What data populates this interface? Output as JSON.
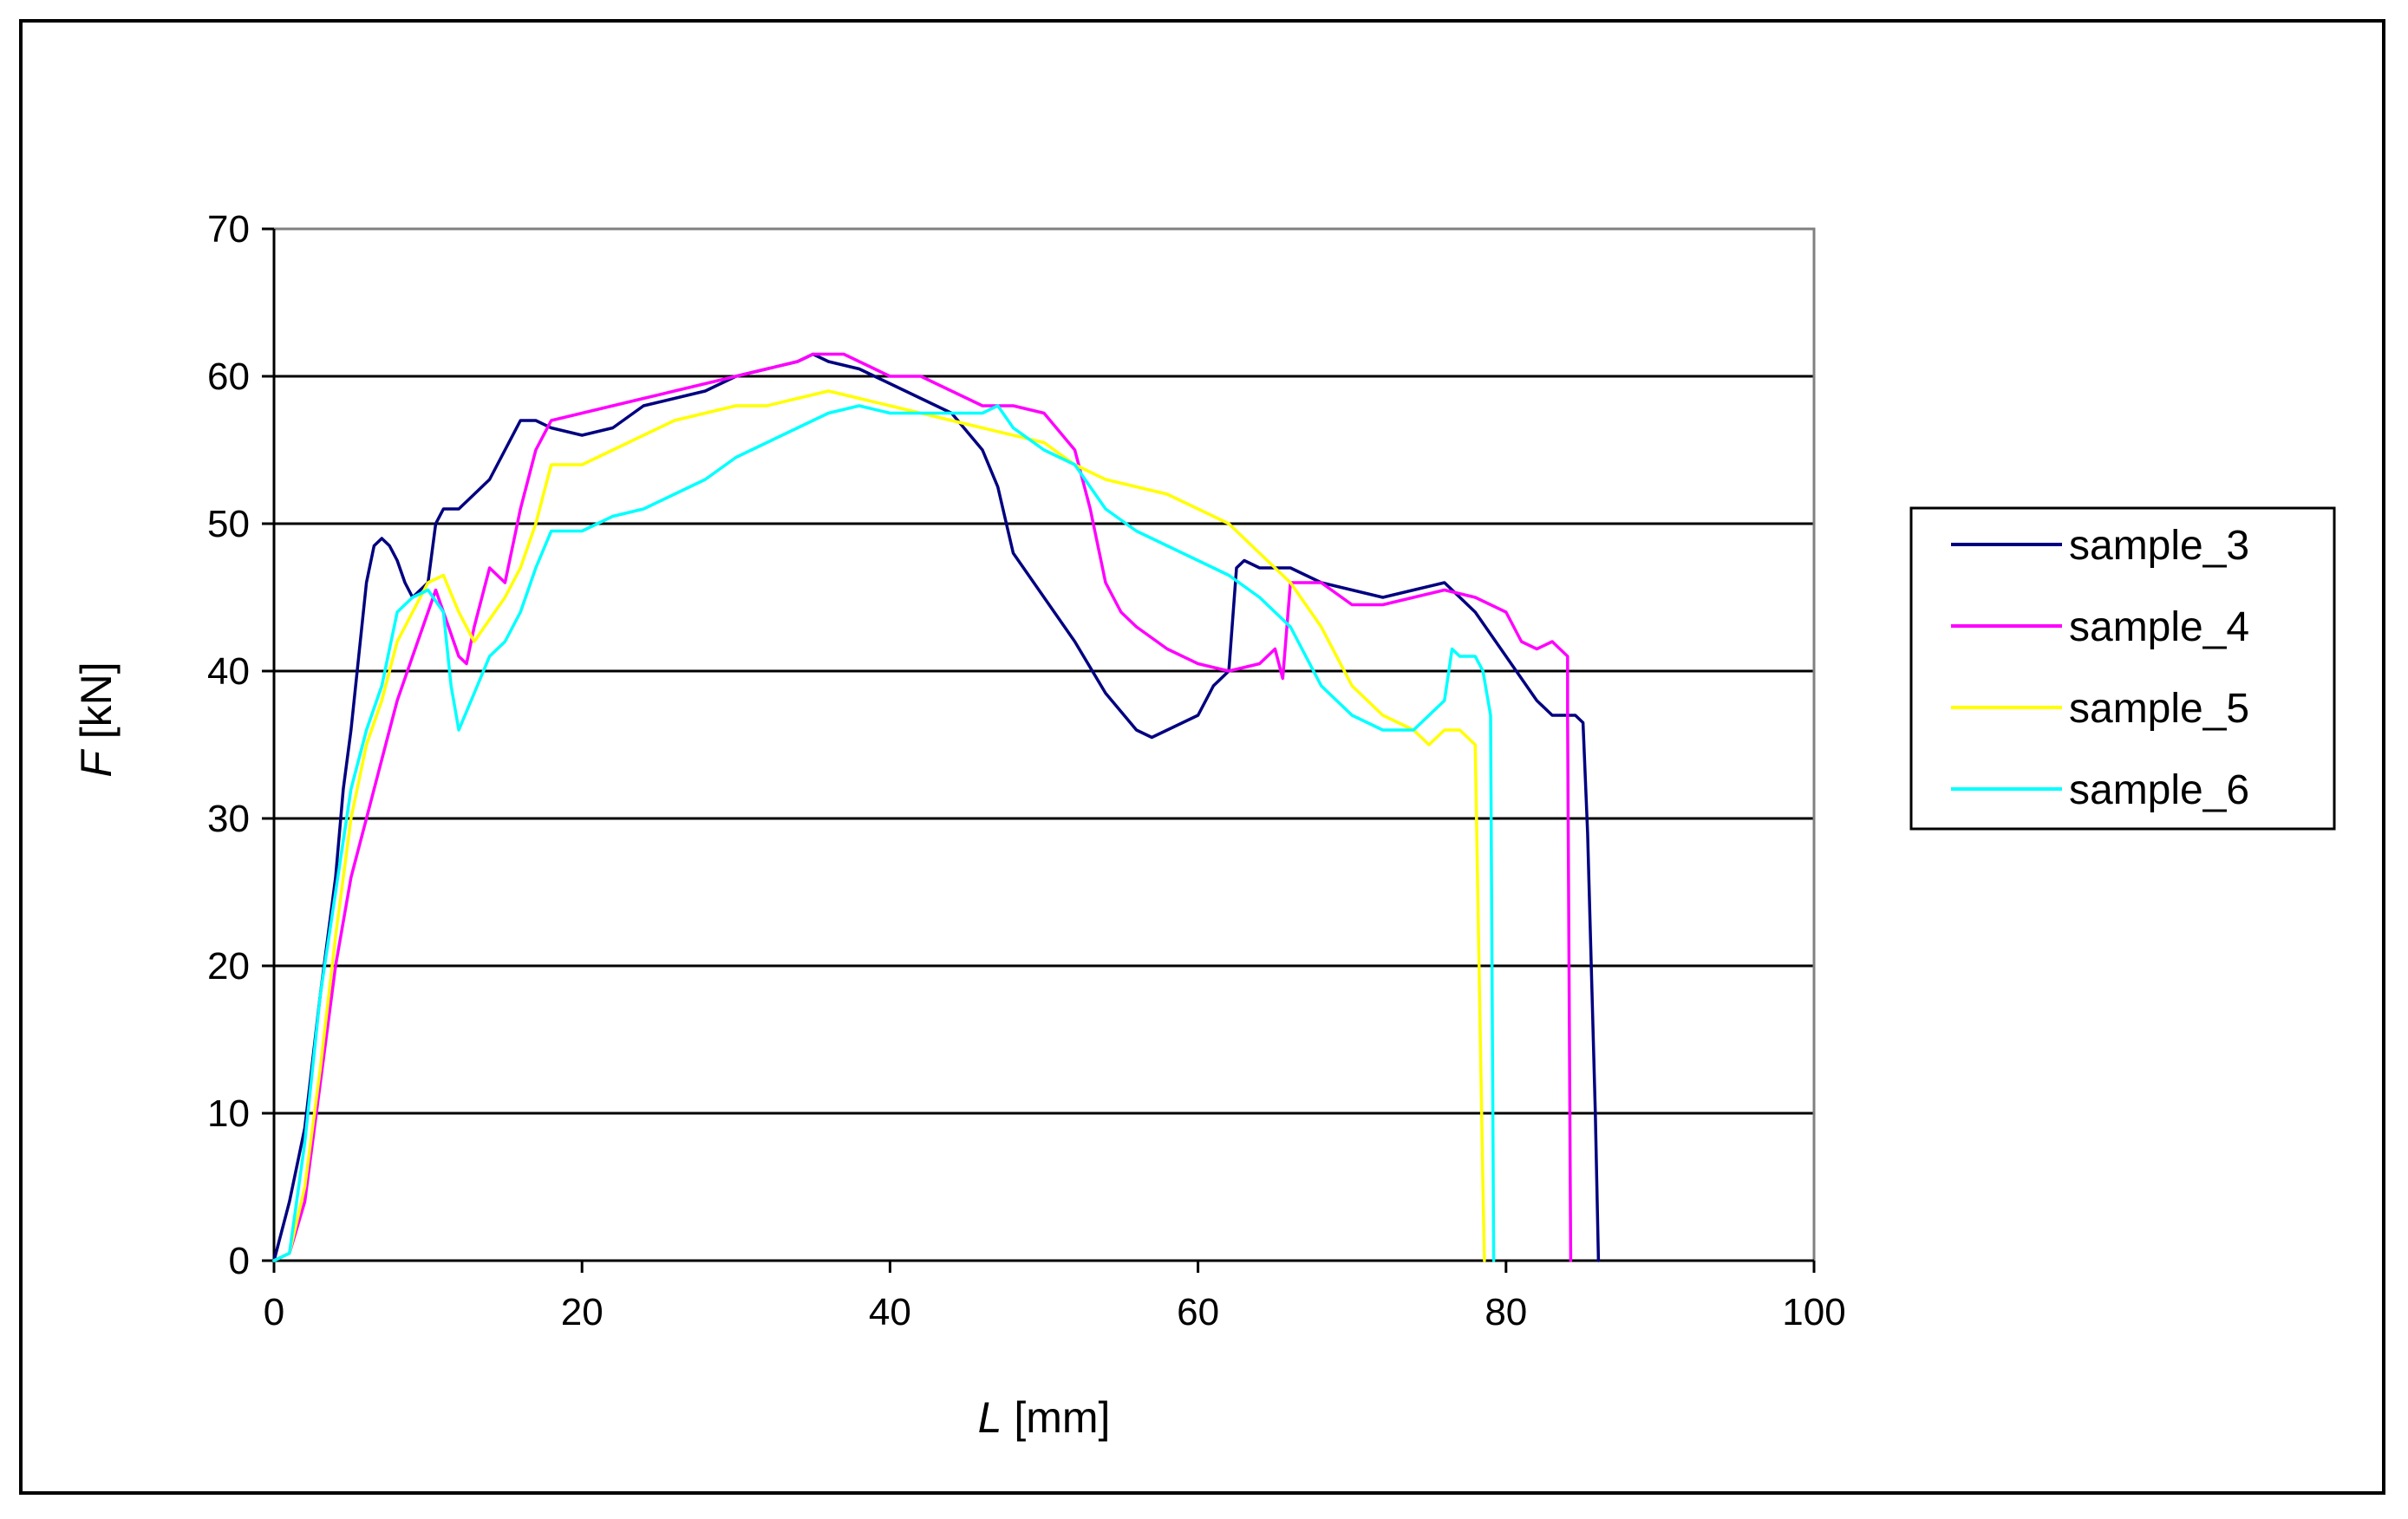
{
  "chart_data": {
    "type": "line",
    "xlabel": {
      "var": "L",
      "unit": "[mm]"
    },
    "ylabel": {
      "var": "F",
      "unit": "[kN]"
    },
    "xlim": [
      0,
      100
    ],
    "ylim": [
      0,
      70
    ],
    "xticks": [
      0,
      20,
      40,
      60,
      80,
      100
    ],
    "yticks": [
      0,
      10,
      20,
      30,
      40,
      50,
      60,
      70
    ],
    "xtick_labels": [
      "0",
      "20",
      "40",
      "60",
      "80",
      "100"
    ],
    "ytick_labels": [
      "0",
      "10",
      "20",
      "30",
      "40",
      "50",
      "60",
      "70"
    ],
    "grid": "horizontal",
    "legend_position": "right",
    "series": [
      {
        "name": "sample_3",
        "color": "#000080",
        "points": [
          [
            0,
            0
          ],
          [
            0.5,
            2
          ],
          [
            1,
            4
          ],
          [
            2,
            9
          ],
          [
            3,
            18
          ],
          [
            4,
            26
          ],
          [
            4.5,
            32
          ],
          [
            5,
            36
          ],
          [
            5.5,
            41
          ],
          [
            6,
            46
          ],
          [
            6.5,
            48.5
          ],
          [
            7,
            49
          ],
          [
            7.5,
            48.5
          ],
          [
            8,
            47.5
          ],
          [
            8.5,
            46
          ],
          [
            9,
            45
          ],
          [
            10,
            46
          ],
          [
            10.5,
            50
          ],
          [
            11,
            51
          ],
          [
            12,
            51
          ],
          [
            13,
            52
          ],
          [
            14,
            53
          ],
          [
            15,
            55
          ],
          [
            16,
            57
          ],
          [
            17,
            57
          ],
          [
            18,
            56.5
          ],
          [
            20,
            56
          ],
          [
            22,
            56.5
          ],
          [
            24,
            58
          ],
          [
            26,
            58.5
          ],
          [
            28,
            59
          ],
          [
            30,
            60
          ],
          [
            32,
            60.5
          ],
          [
            34,
            61
          ],
          [
            35,
            61.5
          ],
          [
            36,
            61
          ],
          [
            38,
            60.5
          ],
          [
            40,
            59.5
          ],
          [
            42,
            58.5
          ],
          [
            44,
            57.5
          ],
          [
            46,
            55
          ],
          [
            47,
            52.5
          ],
          [
            48,
            48
          ],
          [
            50,
            45
          ],
          [
            52,
            42
          ],
          [
            54,
            38.5
          ],
          [
            56,
            36
          ],
          [
            57,
            35.5
          ],
          [
            58,
            36
          ],
          [
            60,
            37
          ],
          [
            61,
            39
          ],
          [
            62,
            40
          ],
          [
            62.5,
            47
          ],
          [
            63,
            47.5
          ],
          [
            64,
            47
          ],
          [
            66,
            47
          ],
          [
            68,
            46
          ],
          [
            70,
            45.5
          ],
          [
            72,
            45
          ],
          [
            74,
            45.5
          ],
          [
            76,
            46
          ],
          [
            78,
            44
          ],
          [
            80,
            41
          ],
          [
            82,
            38
          ],
          [
            83,
            37
          ],
          [
            84,
            37
          ],
          [
            84.5,
            37
          ],
          [
            85,
            36.5
          ],
          [
            85.3,
            29
          ],
          [
            85.8,
            10
          ],
          [
            86,
            0
          ]
        ]
      },
      {
        "name": "sample_4",
        "color": "#ff00ff",
        "points": [
          [
            0,
            0
          ],
          [
            1,
            0.5
          ],
          [
            2,
            4
          ],
          [
            3,
            12
          ],
          [
            4,
            20
          ],
          [
            5,
            26
          ],
          [
            6,
            30
          ],
          [
            7,
            34
          ],
          [
            8,
            38
          ],
          [
            9,
            41
          ],
          [
            10,
            44
          ],
          [
            10.5,
            45.5
          ],
          [
            11,
            44
          ],
          [
            12,
            41
          ],
          [
            12.5,
            40.5
          ],
          [
            13,
            43
          ],
          [
            14,
            47
          ],
          [
            15,
            46
          ],
          [
            16,
            51
          ],
          [
            17,
            55
          ],
          [
            18,
            57
          ],
          [
            20,
            57.5
          ],
          [
            22,
            58
          ],
          [
            24,
            58.5
          ],
          [
            26,
            59
          ],
          [
            28,
            59.5
          ],
          [
            30,
            60
          ],
          [
            32,
            60.5
          ],
          [
            34,
            61
          ],
          [
            35,
            61.5
          ],
          [
            37,
            61.5
          ],
          [
            38,
            61
          ],
          [
            40,
            60
          ],
          [
            42,
            60
          ],
          [
            44,
            59
          ],
          [
            46,
            58
          ],
          [
            48,
            58
          ],
          [
            50,
            57.5
          ],
          [
            52,
            55
          ],
          [
            53,
            51
          ],
          [
            54,
            46
          ],
          [
            55,
            44
          ],
          [
            56,
            43
          ],
          [
            58,
            41.5
          ],
          [
            60,
            40.5
          ],
          [
            62,
            40
          ],
          [
            64,
            40.5
          ],
          [
            65,
            41.5
          ],
          [
            65.5,
            39.5
          ],
          [
            66,
            46
          ],
          [
            68,
            46
          ],
          [
            70,
            44.5
          ],
          [
            72,
            44.5
          ],
          [
            74,
            45
          ],
          [
            76,
            45.5
          ],
          [
            78,
            45
          ],
          [
            80,
            44
          ],
          [
            81,
            42
          ],
          [
            82,
            41.5
          ],
          [
            83,
            42
          ],
          [
            84,
            41
          ],
          [
            84,
            37
          ],
          [
            84.2,
            0
          ]
        ]
      },
      {
        "name": "sample_5",
        "color": "#ffff00",
        "points": [
          [
            0,
            0
          ],
          [
            1,
            0.5
          ],
          [
            2,
            5
          ],
          [
            3,
            13
          ],
          [
            4,
            22
          ],
          [
            5,
            30
          ],
          [
            6,
            35
          ],
          [
            7,
            38
          ],
          [
            8,
            42
          ],
          [
            9,
            44
          ],
          [
            10,
            46
          ],
          [
            11,
            46.5
          ],
          [
            12,
            44
          ],
          [
            13,
            42
          ],
          [
            14,
            43.5
          ],
          [
            15,
            45
          ],
          [
            16,
            47
          ],
          [
            17,
            50
          ],
          [
            18,
            54
          ],
          [
            20,
            54
          ],
          [
            22,
            55
          ],
          [
            24,
            56
          ],
          [
            26,
            57
          ],
          [
            28,
            57.5
          ],
          [
            30,
            58
          ],
          [
            32,
            58
          ],
          [
            34,
            58.5
          ],
          [
            36,
            59
          ],
          [
            38,
            58.5
          ],
          [
            40,
            58
          ],
          [
            42,
            57.5
          ],
          [
            44,
            57
          ],
          [
            46,
            56.5
          ],
          [
            48,
            56
          ],
          [
            50,
            55.5
          ],
          [
            52,
            54
          ],
          [
            54,
            53
          ],
          [
            56,
            52.5
          ],
          [
            58,
            52
          ],
          [
            60,
            51
          ],
          [
            62,
            50
          ],
          [
            64,
            48
          ],
          [
            66,
            46
          ],
          [
            68,
            43
          ],
          [
            70,
            39
          ],
          [
            72,
            37
          ],
          [
            74,
            36
          ],
          [
            75,
            35
          ],
          [
            76,
            36
          ],
          [
            77,
            36
          ],
          [
            78,
            35
          ],
          [
            78.3,
            17
          ],
          [
            78.5,
            5
          ],
          [
            78.6,
            0
          ]
        ]
      },
      {
        "name": "sample_6",
        "color": "#00ffff",
        "points": [
          [
            0,
            0
          ],
          [
            1,
            0.5
          ],
          [
            2,
            8
          ],
          [
            3,
            18
          ],
          [
            4,
            25
          ],
          [
            5,
            32
          ],
          [
            6,
            36
          ],
          [
            7,
            39
          ],
          [
            8,
            44
          ],
          [
            9,
            45
          ],
          [
            10,
            45.5
          ],
          [
            11,
            44
          ],
          [
            11.5,
            39
          ],
          [
            12,
            36
          ],
          [
            13,
            38.5
          ],
          [
            14,
            41
          ],
          [
            15,
            42
          ],
          [
            16,
            44
          ],
          [
            17,
            47
          ],
          [
            18,
            49.5
          ],
          [
            20,
            49.5
          ],
          [
            22,
            50.5
          ],
          [
            24,
            51
          ],
          [
            26,
            52
          ],
          [
            28,
            53
          ],
          [
            30,
            54.5
          ],
          [
            32,
            55.5
          ],
          [
            34,
            56.5
          ],
          [
            36,
            57.5
          ],
          [
            38,
            58
          ],
          [
            40,
            57.5
          ],
          [
            42,
            57.5
          ],
          [
            44,
            57.5
          ],
          [
            46,
            57.5
          ],
          [
            47,
            58
          ],
          [
            48,
            56.5
          ],
          [
            50,
            55
          ],
          [
            52,
            54
          ],
          [
            54,
            51
          ],
          [
            56,
            49.5
          ],
          [
            58,
            48.5
          ],
          [
            60,
            47.5
          ],
          [
            62,
            46.5
          ],
          [
            64,
            45
          ],
          [
            66,
            43
          ],
          [
            68,
            39
          ],
          [
            70,
            37
          ],
          [
            72,
            36
          ],
          [
            74,
            36
          ],
          [
            75,
            37
          ],
          [
            76,
            38
          ],
          [
            76.5,
            41.5
          ],
          [
            77,
            41
          ],
          [
            78,
            41
          ],
          [
            78.5,
            40
          ],
          [
            79,
            37
          ],
          [
            79.2,
            0
          ]
        ]
      }
    ]
  }
}
